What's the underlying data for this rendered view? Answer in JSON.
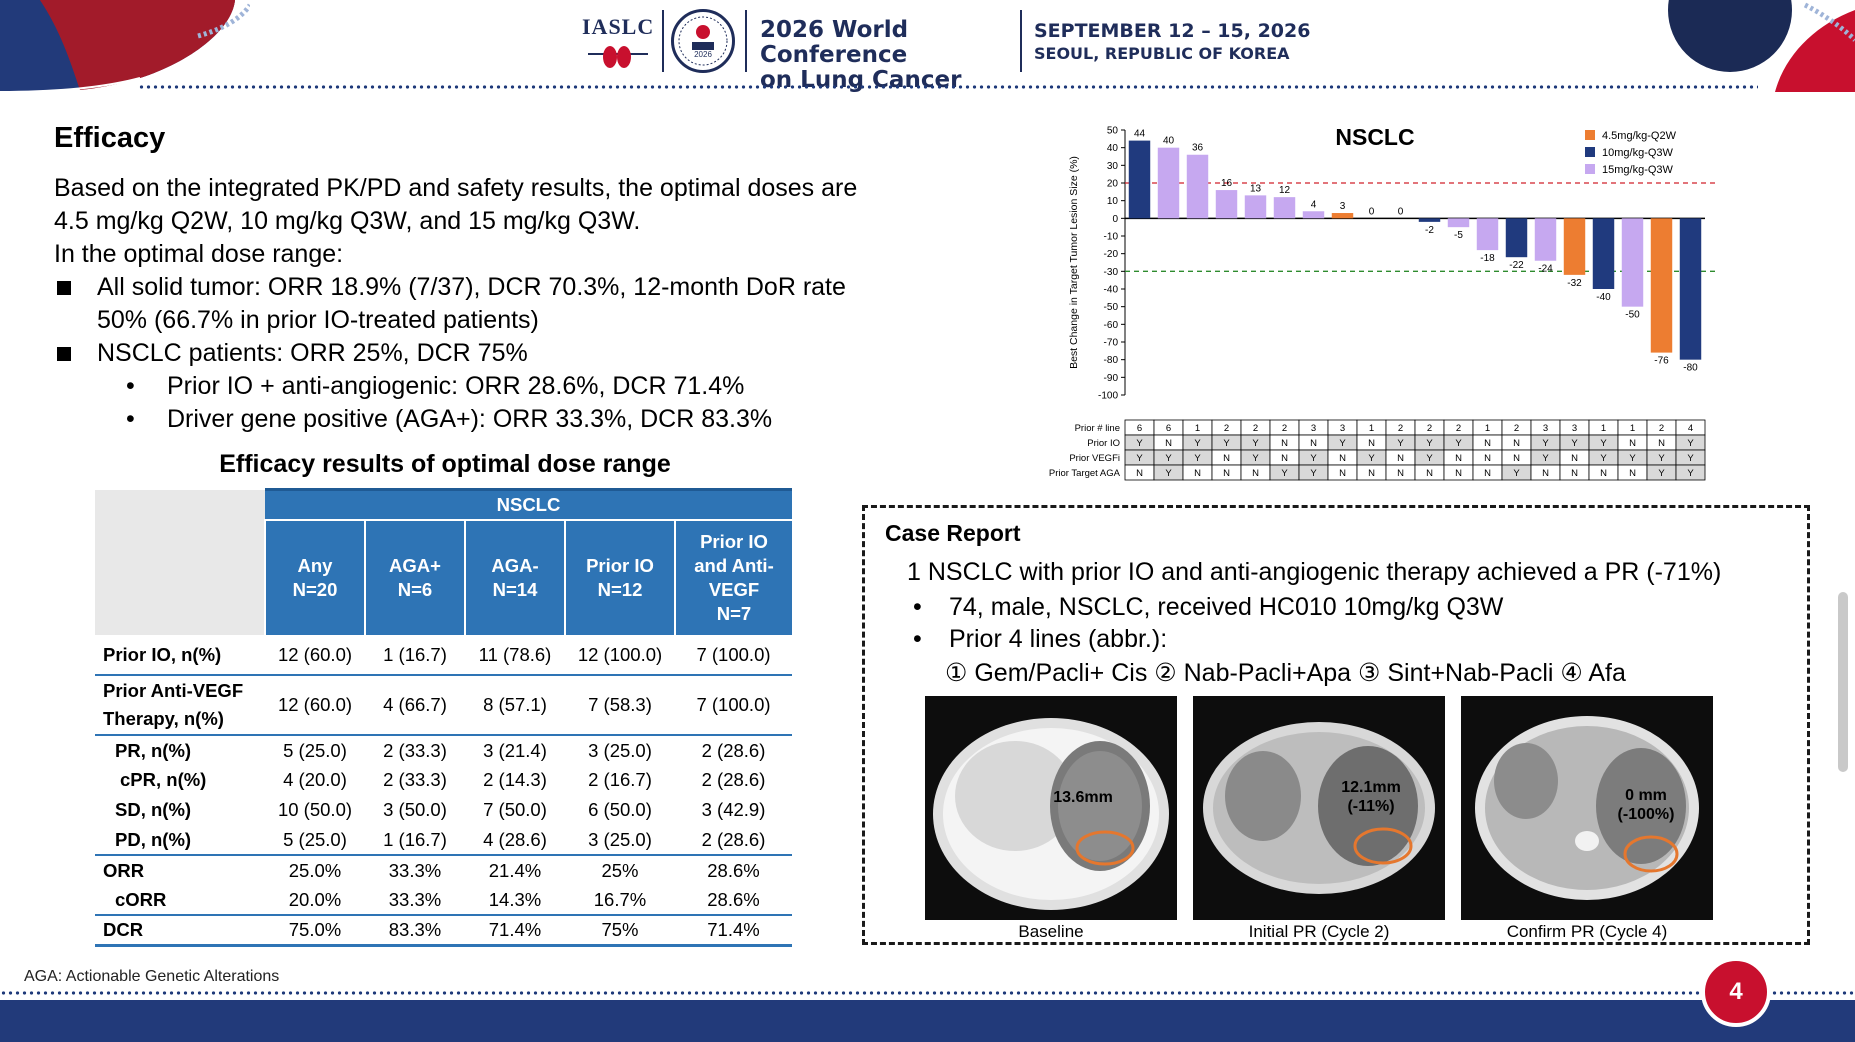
{
  "header": {
    "org": "IASLC",
    "seal_year": "2026",
    "conference_line1": "2026 World Conference",
    "conference_line2": "on Lung Cancer",
    "dates": "SEPTEMBER 12 – 15, 2026",
    "location": "SEOUL, REPUBLIC OF KOREA"
  },
  "colors": {
    "navy": "#223a7a",
    "red": "#c8102e",
    "table_blue": "#2e74b5",
    "orange": "#ed7d31",
    "darkblue": "#203a7e",
    "lavender": "#c6a8f0"
  },
  "left": {
    "title": "Efficacy",
    "intro_1": "Based on the integrated PK/PD and safety results, the optimal doses are",
    "intro_2": "4.5 mg/kg Q2W, 10 mg/kg Q3W, and 15 mg/kg Q3W.",
    "intro_3": "In the optimal dose range:",
    "bullet_1a": "All solid tumor: ORR 18.9% (7/37), DCR 70.3%, 12-month DoR rate",
    "bullet_1b": "50% (66.7% in prior IO-treated patients)",
    "bullet_2": "NSCLC patients: ORR 25%, DCR 75%",
    "sub_1": "Prior IO + anti-angiogenic: ORR 28.6%, DCR 71.4%",
    "sub_2": "Driver gene positive (AGA+): ORR 33.3%, DCR 83.3%",
    "sub_dot": "•"
  },
  "table": {
    "title": "Efficacy results of optimal dose range",
    "group_header": "NSCLC",
    "columns": [
      [
        "Any",
        "N=20"
      ],
      [
        "AGA+",
        "N=6"
      ],
      [
        "AGA-",
        "N=14"
      ],
      [
        "Prior IO",
        "N=12"
      ],
      [
        "Prior IO",
        "and Anti-",
        "VEGF",
        "N=7"
      ]
    ],
    "rows": [
      {
        "label": "Prior IO, n(%)",
        "values": [
          "12 (60.0)",
          "1 (16.7)",
          "11 (78.6)",
          "12 (100.0)",
          "7 (100.0)"
        ]
      },
      {
        "label_1": "Prior Anti-VEGF",
        "label_2": "Therapy, n(%)",
        "values": [
          "12 (60.0)",
          "4 (66.7)",
          "8 (57.1)",
          "7 (58.3)",
          "7 (100.0)"
        ]
      },
      {
        "label": "PR, n(%)",
        "values": [
          "5 (25.0)",
          "2 (33.3)",
          "3 (21.4)",
          "3 (25.0)",
          "2 (28.6)"
        ]
      },
      {
        "label": "cPR, n(%)",
        "values": [
          "4 (20.0)",
          "2 (33.3)",
          "2 (14.3)",
          "2 (16.7)",
          "2 (28.6)"
        ]
      },
      {
        "label": "SD, n(%)",
        "values": [
          "10 (50.0)",
          "3 (50.0)",
          "7 (50.0)",
          "6 (50.0)",
          "3 (42.9)"
        ]
      },
      {
        "label": "PD, n(%)",
        "values": [
          "5 (25.0)",
          "1 (16.7)",
          "4 (28.6)",
          "3 (25.0)",
          "2 (28.6)"
        ]
      },
      {
        "label": "ORR",
        "values": [
          "25.0%",
          "33.3%",
          "21.4%",
          "25%",
          "28.6%"
        ]
      },
      {
        "label": "cORR",
        "values": [
          "20.0%",
          "33.3%",
          "14.3%",
          "16.7%",
          "28.6%"
        ]
      },
      {
        "label": "DCR",
        "values": [
          "75.0%",
          "83.3%",
          "71.4%",
          "75%",
          "71.4%"
        ]
      }
    ]
  },
  "chart_data": {
    "type": "bar",
    "title": "NSCLC",
    "ylabel": "Best Change in Target Tumor Lesion Size (%)",
    "ylim": [
      -100,
      50
    ],
    "yticks": [
      50,
      40,
      30,
      20,
      10,
      0,
      -10,
      -20,
      -30,
      -40,
      -50,
      -60,
      -70,
      -80,
      -90,
      -100
    ],
    "reference_lines": [
      20,
      -30
    ],
    "legend": [
      {
        "name": "4.5mg/kg-Q2W",
        "color": "#ed7d31"
      },
      {
        "name": "10mg/kg-Q3W",
        "color": "#203a7e"
      },
      {
        "name": "15mg/kg-Q3W",
        "color": "#c6a8f0"
      }
    ],
    "legend_position": "top-right",
    "values": [
      44,
      40,
      36,
      16,
      13,
      12,
      4,
      3,
      0,
      0,
      -2,
      -5,
      -18,
      -22,
      -24,
      -32,
      -40,
      -50,
      -76,
      -80
    ],
    "labels": [
      "44",
      "40",
      "36",
      "16",
      "13",
      "12",
      "4",
      "3",
      "0",
      "0",
      "-2",
      "-5",
      "-18",
      "-22",
      "-24",
      "-32",
      "-40",
      "-50",
      "-76",
      "-80"
    ],
    "dose_group": [
      1,
      2,
      2,
      2,
      2,
      2,
      2,
      0,
      1,
      1,
      1,
      2,
      2,
      1,
      2,
      0,
      1,
      2,
      0,
      1
    ],
    "info_rows": [
      {
        "label": "Prior # line",
        "values": [
          "6",
          "6",
          "1",
          "2",
          "2",
          "2",
          "3",
          "3",
          "1",
          "2",
          "2",
          "2",
          "1",
          "2",
          "3",
          "3",
          "1",
          "1",
          "2",
          "4"
        ]
      },
      {
        "label": "Prior IO",
        "values": [
          "Y",
          "N",
          "Y",
          "Y",
          "Y",
          "N",
          "N",
          "Y",
          "N",
          "Y",
          "Y",
          "Y",
          "N",
          "N",
          "Y",
          "Y",
          "Y",
          "N",
          "N",
          "Y"
        ]
      },
      {
        "label": "Prior VEGFi",
        "values": [
          "Y",
          "Y",
          "Y",
          "N",
          "Y",
          "N",
          "Y",
          "N",
          "Y",
          "N",
          "Y",
          "N",
          "N",
          "N",
          "Y",
          "N",
          "Y",
          "Y",
          "Y",
          "Y"
        ]
      },
      {
        "label": "Prior Target AGA",
        "values": [
          "N",
          "Y",
          "N",
          "N",
          "N",
          "Y",
          "Y",
          "N",
          "N",
          "N",
          "N",
          "N",
          "N",
          "Y",
          "N",
          "N",
          "N",
          "N",
          "Y",
          "Y"
        ]
      }
    ]
  },
  "case_report": {
    "title": "Case Report",
    "line_1": "1 NSCLC with prior IO and anti-angiogenic therapy achieved a PR (-71%)",
    "bullet_1": "74, male, NSCLC, received HC010 10mg/kg Q3W",
    "bullet_2": "Prior 4 lines (abbr.):",
    "bullet_dot": "•",
    "lines": "① Gem/Pacli+ Cis ② Nab-Pacli+Apa ③ Sint+Nab-Pacli ④ Afa",
    "scans": [
      {
        "caption": "Baseline",
        "label_1": "13.6mm",
        "label_2": ""
      },
      {
        "caption": "Initial PR (Cycle 2)",
        "label_1": "12.1mm",
        "label_2": "(-11%)"
      },
      {
        "caption": "Confirm PR (Cycle 4)",
        "label_1": "0 mm",
        "label_2": "(-100%)"
      }
    ]
  },
  "footer": {
    "footnote": "AGA: Actionable Genetic Alterations",
    "page": "4"
  }
}
